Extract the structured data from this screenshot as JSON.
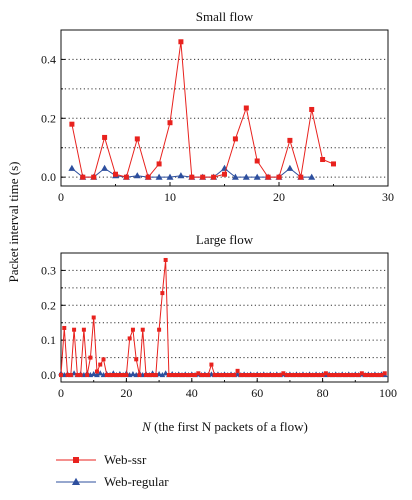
{
  "figure": {
    "ylabel": "Packet interval time (s)",
    "xlabel_italic": "N",
    "xlabel_rest": " (the first N packets of a flow)"
  },
  "legend": [
    {
      "name": "Web-ssr",
      "color": "#e8221e",
      "marker": "square"
    },
    {
      "name": "Web-regular",
      "color": "#2d4f9e",
      "marker": "triangle"
    }
  ],
  "chart_data": [
    {
      "type": "line",
      "title": "Small flow",
      "xlim": [
        0,
        30
      ],
      "ylim": [
        -0.03,
        0.5
      ],
      "xticks": [
        0,
        10,
        20,
        30
      ],
      "yticks": [
        0.0,
        0.2,
        0.4
      ],
      "ytick_labels": [
        "0.0",
        "0.2",
        "0.4"
      ],
      "dotted_gridlines_y": [
        0.0,
        0.1,
        0.2,
        0.3,
        0.4
      ],
      "series": [
        {
          "name": "Web-ssr",
          "x": [
            1,
            2,
            3,
            4,
            5,
            6,
            7,
            8,
            9,
            10,
            11,
            12,
            13,
            14,
            15,
            16,
            17,
            18,
            19,
            20,
            21,
            22,
            23,
            24,
            25
          ],
          "y": [
            0.18,
            0.0,
            0.0,
            0.135,
            0.01,
            0.0,
            0.13,
            0.0,
            0.045,
            0.185,
            0.46,
            0.0,
            0.0,
            0.0,
            0.01,
            0.13,
            0.235,
            0.055,
            0.0,
            0.0,
            0.125,
            0.0,
            0.23,
            0.06,
            0.045
          ]
        },
        {
          "name": "Web-regular",
          "x": [
            1,
            2,
            3,
            4,
            5,
            6,
            7,
            8,
            9,
            10,
            11,
            12,
            13,
            14,
            15,
            16,
            17,
            18,
            19,
            20,
            21,
            22,
            23
          ],
          "y": [
            0.03,
            0.0,
            0.0,
            0.03,
            0.005,
            0.0,
            0.005,
            0.0,
            0.0,
            0.0,
            0.005,
            0.0,
            0.0,
            0.0,
            0.03,
            0.0,
            0.0,
            0.0,
            0.0,
            0.0,
            0.03,
            0.0,
            0.0
          ]
        }
      ]
    },
    {
      "type": "line",
      "title": "Large flow",
      "xlim": [
        0,
        100
      ],
      "ylim": [
        -0.02,
        0.35
      ],
      "xticks": [
        0,
        20,
        40,
        60,
        80,
        100
      ],
      "yticks": [
        0.0,
        0.1,
        0.2,
        0.3
      ],
      "ytick_labels": [
        "0.0",
        "0.1",
        "0.2",
        "0.3"
      ],
      "dotted_gridlines_y": [
        0.0,
        0.05,
        0.1,
        0.15,
        0.2,
        0.25,
        0.3
      ],
      "series": [
        {
          "name": "Web-ssr",
          "x": [
            0,
            1,
            2,
            3,
            4,
            5,
            6,
            7,
            8,
            9,
            10,
            11,
            12,
            13,
            14,
            15,
            16,
            17,
            18,
            19,
            20,
            21,
            22,
            23,
            24,
            25,
            26,
            27,
            28,
            29,
            30,
            31,
            32,
            33,
            34,
            35,
            36,
            37,
            38,
            39,
            40,
            41,
            42,
            43,
            44,
            45,
            46,
            47,
            48,
            49,
            50,
            51,
            52,
            53,
            54,
            55,
            56,
            57,
            58,
            59,
            60,
            61,
            62,
            63,
            64,
            65,
            66,
            67,
            68,
            69,
            70,
            71,
            72,
            73,
            74,
            75,
            76,
            77,
            78,
            79,
            80,
            81,
            82,
            83,
            84,
            85,
            86,
            87,
            88,
            89,
            90,
            91,
            92,
            93,
            94,
            95,
            96,
            97,
            98,
            99
          ],
          "y": [
            0.0,
            0.135,
            0.0,
            0.0,
            0.13,
            0.0,
            0.0,
            0.13,
            0.0,
            0.05,
            0.165,
            0.01,
            0.03,
            0.045,
            0.0,
            0.0,
            0.0,
            0.0,
            0.0,
            0.0,
            0.0,
            0.105,
            0.13,
            0.045,
            0.0,
            0.13,
            0.0,
            0.0,
            0.0,
            0.0,
            0.13,
            0.235,
            0.33,
            0.0,
            0.0,
            0.0,
            0.0,
            0.0,
            0.0,
            0.0,
            0.0,
            0.0,
            0.005,
            0.0,
            0.0,
            0.0,
            0.03,
            0.0,
            0.0,
            0.0,
            0.0,
            0.0,
            0.0,
            0.0,
            0.012,
            0.0,
            0.0,
            0.0,
            0.0,
            0.0,
            0.0,
            0.0,
            0.0,
            0.0,
            0.0,
            0.0,
            0.0,
            0.0,
            0.005,
            0.0,
            0.0,
            0.0,
            0.0,
            0.0,
            0.0,
            0.0,
            0.0,
            0.0,
            0.0,
            0.0,
            0.0,
            0.005,
            0.0,
            0.0,
            0.0,
            0.0,
            0.0,
            0.0,
            0.0,
            0.0,
            0.0,
            0.0,
            0.005,
            0.0,
            0.0,
            0.0,
            0.0,
            0.0,
            0.0,
            0.005
          ]
        },
        {
          "name": "Web-regular",
          "x": [
            0,
            1,
            2,
            3,
            4,
            5,
            6,
            7,
            8,
            9,
            10,
            11,
            12,
            13,
            14,
            15,
            16,
            17,
            18,
            19,
            20,
            21,
            22,
            23,
            24,
            25,
            26,
            27,
            28,
            29,
            30,
            31,
            32,
            33,
            34,
            35,
            36,
            37,
            38,
            39,
            40,
            41,
            42,
            43,
            44,
            45,
            46,
            47,
            48,
            49,
            50,
            51,
            52,
            53,
            54,
            55,
            56,
            57,
            58,
            59,
            60,
            61,
            62,
            63,
            64,
            65,
            66,
            67,
            68,
            69,
            70,
            71,
            72,
            73,
            74,
            75,
            76,
            77,
            78,
            79,
            80,
            81,
            82,
            83,
            84,
            85,
            86,
            87,
            88,
            89,
            90,
            91,
            92,
            93,
            94,
            95,
            96,
            97,
            98,
            99
          ],
          "y": [
            0.005,
            0.0,
            0.003,
            0.0,
            0.005,
            0.0,
            0.003,
            0.0,
            0.005,
            0.0,
            0.003,
            0.0,
            0.005,
            0.0,
            0.003,
            0.0,
            0.005,
            0.0,
            0.003,
            0.0,
            0.005,
            0.0,
            0.003,
            0.0,
            0.005,
            0.0,
            0.003,
            0.0,
            0.005,
            0.0,
            0.003,
            0.0,
            0.005,
            0.0,
            0.003,
            0.0,
            0.002,
            0.0,
            0.002,
            0.0,
            0.002,
            0.0,
            0.002,
            0.0,
            0.002,
            0.0,
            0.002,
            0.0,
            0.002,
            0.0,
            0.002,
            0.0,
            0.002,
            0.0,
            0.002,
            0.0,
            0.002,
            0.0,
            0.002,
            0.0,
            0.002,
            0.0,
            0.002,
            0.0,
            0.002,
            0.0,
            0.002,
            0.0,
            0.002,
            0.0,
            0.002,
            0.0,
            0.002,
            0.0,
            0.002,
            0.0,
            0.002,
            0.0,
            0.002,
            0.0,
            0.002,
            0.0,
            0.002,
            0.0,
            0.002,
            0.0,
            0.002,
            0.0,
            0.002,
            0.0,
            0.002,
            0.0,
            0.002,
            0.0,
            0.002,
            0.0,
            0.002,
            0.0,
            0.002,
            0.0
          ]
        }
      ]
    }
  ]
}
